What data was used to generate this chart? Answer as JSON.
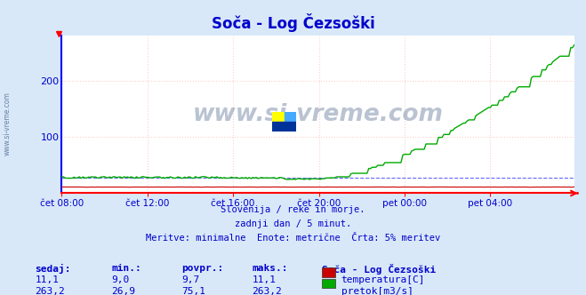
{
  "title": "Soča - Log Čezsoški",
  "bg_color": "#d8e8f8",
  "plot_bg_color": "#ffffff",
  "grid_color": "#ffcccc",
  "title_color": "#0000cc",
  "axis_color": "#ff0000",
  "text_color": "#0000cc",
  "ylim": [
    0,
    280
  ],
  "yticks": [
    0,
    100,
    200
  ],
  "xtick_labels": [
    "čet 08:00",
    "čet 12:00",
    "čet 16:00",
    "čet 20:00",
    "pet 00:00",
    "pet 04:00"
  ],
  "xtick_positions": [
    0,
    48,
    96,
    144,
    192,
    240
  ],
  "total_points": 288,
  "subtitle_lines": [
    "Slovenija / reke in morje.",
    "zadnji dan / 5 minut.",
    "Meritve: minimalne  Enote: metrične  Črta: 5% meritev"
  ],
  "stats_headers": [
    "sedaj:",
    "min.:",
    "povpr.:",
    "maks.:"
  ],
  "stats_row1": [
    "11,1",
    "9,0",
    "9,7",
    "11,1"
  ],
  "stats_row2": [
    "263,2",
    "26,9",
    "75,1",
    "263,2"
  ],
  "legend_label1": "temperatura[C]",
  "legend_label2": "pretok[m3/s]",
  "legend_color1": "#cc0000",
  "legend_color2": "#00aa00",
  "station_label": "Soča - Log Čezsoški",
  "temp_color": "#cc0000",
  "flow_color": "#00aa00",
  "min_line_color": "#6666ff",
  "watermark_color": "#1a3a6a",
  "left_axis_color": "#0000ff",
  "rise_start": 148
}
